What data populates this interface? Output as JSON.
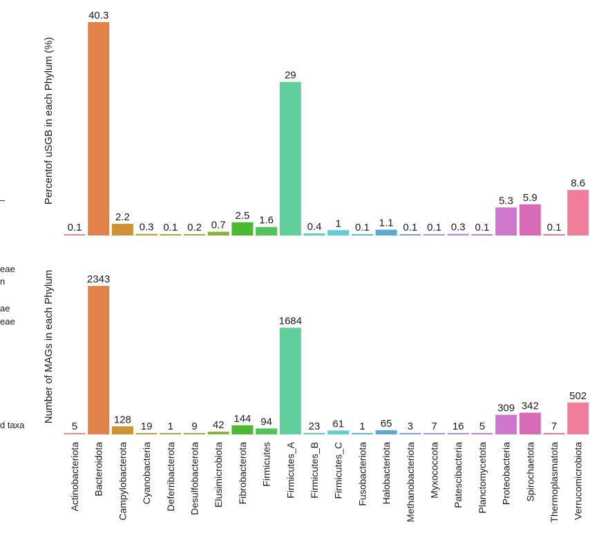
{
  "chart_data": [
    {
      "type": "bar",
      "ylabel": "Percentof uSGB in each Phylum (%)",
      "categories": [
        "Actinobacteriota",
        "Bacteroidota",
        "Campylobacterota",
        "Cyanobacteria",
        "Deferribacterota",
        "Desulfobacterota",
        "Elusimicrobiota",
        "Fibrobacterota",
        "Firmicutes",
        "Firmicutes_A",
        "Firmicutes_B",
        "Firmicutes_C",
        "Fusobacteriota",
        "Halobacteriota",
        "Methanobacteriota",
        "Myxococcota",
        "Patescibacteria",
        "Planctomycetota",
        "Proteobacteria",
        "Spirochaetota",
        "Thermoplasmatota",
        "Verrucomicrobiota"
      ],
      "values": [
        0.1,
        40.3,
        2.2,
        0.3,
        0.1,
        0.2,
        0.7,
        2.5,
        1.6,
        29,
        0.4,
        1,
        0.1,
        1.1,
        0.1,
        0.1,
        0.3,
        0.1,
        5.3,
        5.9,
        0.1,
        8.6
      ],
      "value_labels": [
        "0.1",
        "40.3",
        "2.2",
        "0.3",
        "0.1",
        "0.2",
        "0.7",
        "2.5",
        "1.6",
        "29",
        "0.4",
        "1",
        "0.1",
        "1.1",
        "0.1",
        "0.1",
        "0.3",
        "0.1",
        "5.3",
        "5.9",
        "0.1",
        "8.6"
      ],
      "ylim": [
        0,
        40.3
      ],
      "grid": false
    },
    {
      "type": "bar",
      "ylabel": "Number of MAGs in each Phylum",
      "categories": [
        "Actinobacteriota",
        "Bacteroidota",
        "Campylobacterota",
        "Cyanobacteria",
        "Deferribacterota",
        "Desulfobacterota",
        "Elusimicrobiota",
        "Fibrobacterota",
        "Firmicutes",
        "Firmicutes_A",
        "Firmicutes_B",
        "Firmicutes_C",
        "Fusobacteriota",
        "Halobacteriota",
        "Methanobacteriota",
        "Myxococcota",
        "Patescibacteria",
        "Planctomycetota",
        "Proteobacteria",
        "Spirochaetota",
        "Thermoplasmatota",
        "Verrucomicrobiota"
      ],
      "values": [
        5,
        2343,
        128,
        19,
        1,
        9,
        42,
        144,
        94,
        1684,
        23,
        61,
        1,
        65,
        3,
        7,
        16,
        5,
        309,
        342,
        7,
        502
      ],
      "value_labels": [
        "5",
        "2343",
        "128",
        "19",
        "1",
        "9",
        "42",
        "144",
        "94",
        "1684",
        "23",
        "61",
        "1",
        "65",
        "3",
        "7",
        "16",
        "5",
        "309",
        "342",
        "7",
        "502"
      ],
      "ylim": [
        0,
        2343
      ],
      "grid": false
    }
  ],
  "colors": [
    "#f08a86",
    "#e1824a",
    "#cd9332",
    "#c0a032",
    "#b5a33a",
    "#a7aa3a",
    "#86b23c",
    "#4bb932",
    "#55c15d",
    "#61cf9b",
    "#5ccfc0",
    "#5fcfd3",
    "#58bddc",
    "#5aa8d4",
    "#7d9de0",
    "#9e92e2",
    "#bb89d9",
    "#c97fd9",
    "#cf77cc",
    "#d76bb8",
    "#e276ac",
    "#f07d9b"
  ],
  "left_edge_text": [
    "–",
    "eae",
    "n",
    "ae",
    "eae",
    "d taxa"
  ]
}
